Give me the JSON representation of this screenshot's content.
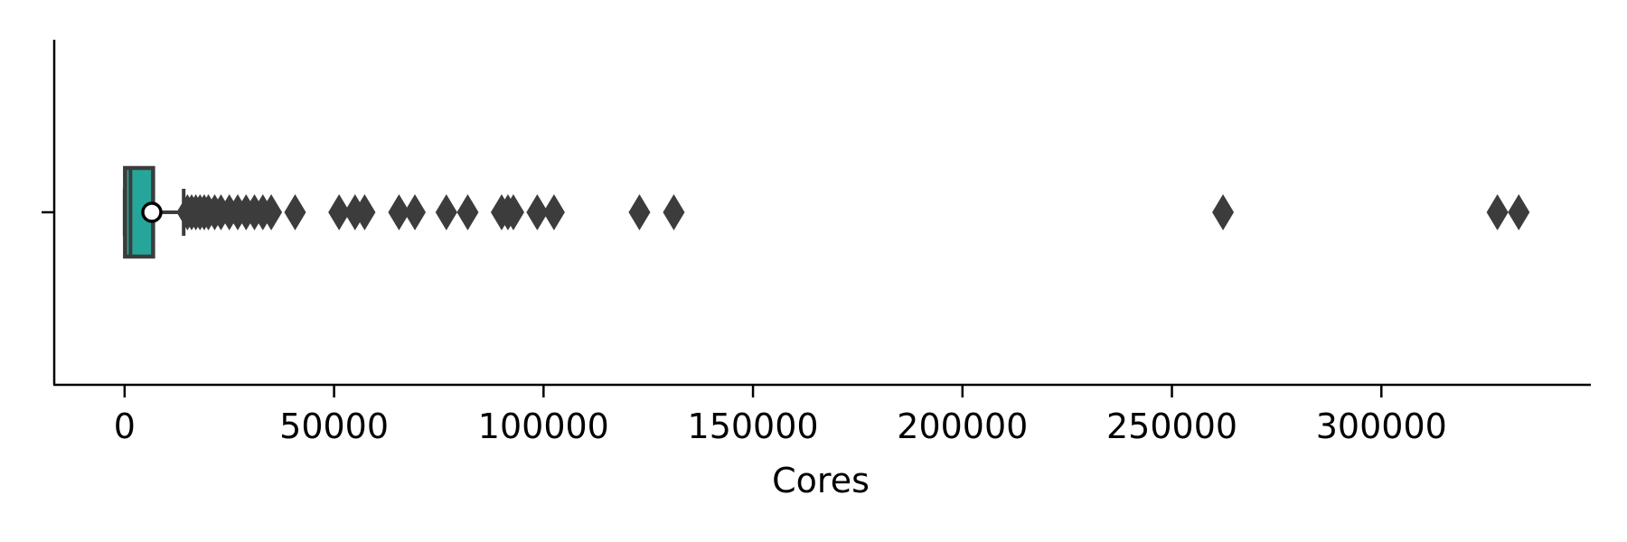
{
  "chart_data": {
    "type": "box",
    "orientation": "horizontal",
    "title": "",
    "xlabel": "Cores",
    "ylabel": "",
    "xlim": [
      -16800,
      350000
    ],
    "x_ticks": [
      0,
      50000,
      100000,
      150000,
      200000,
      250000,
      300000
    ],
    "x_tick_labels": [
      "0",
      "50000",
      "100000",
      "150000",
      "200000",
      "250000",
      "300000"
    ],
    "grid": false,
    "legend": "none",
    "box": {
      "whisker_low": 0,
      "q1": 100,
      "median": 1400,
      "q3": 6800,
      "whisker_high": 14100,
      "mean": 6500
    },
    "outliers": [
      15000,
      16000,
      17000,
      18000,
      19000,
      20000,
      21500,
      23000,
      25000,
      27000,
      29000,
      31000,
      33000,
      35000,
      40700,
      51200,
      55000,
      57300,
      65500,
      69300,
      76800,
      81900,
      90000,
      91500,
      92800,
      98500,
      102500,
      122900,
      131100,
      262200,
      327700,
      332800
    ],
    "colors": {
      "box_fill": "#26a69a",
      "box_edge": "#3c3c3c",
      "outlier": "#3c3c3c",
      "mean_fill": "#ffffff",
      "mean_edge": "#000000",
      "axis": "#000000"
    }
  }
}
